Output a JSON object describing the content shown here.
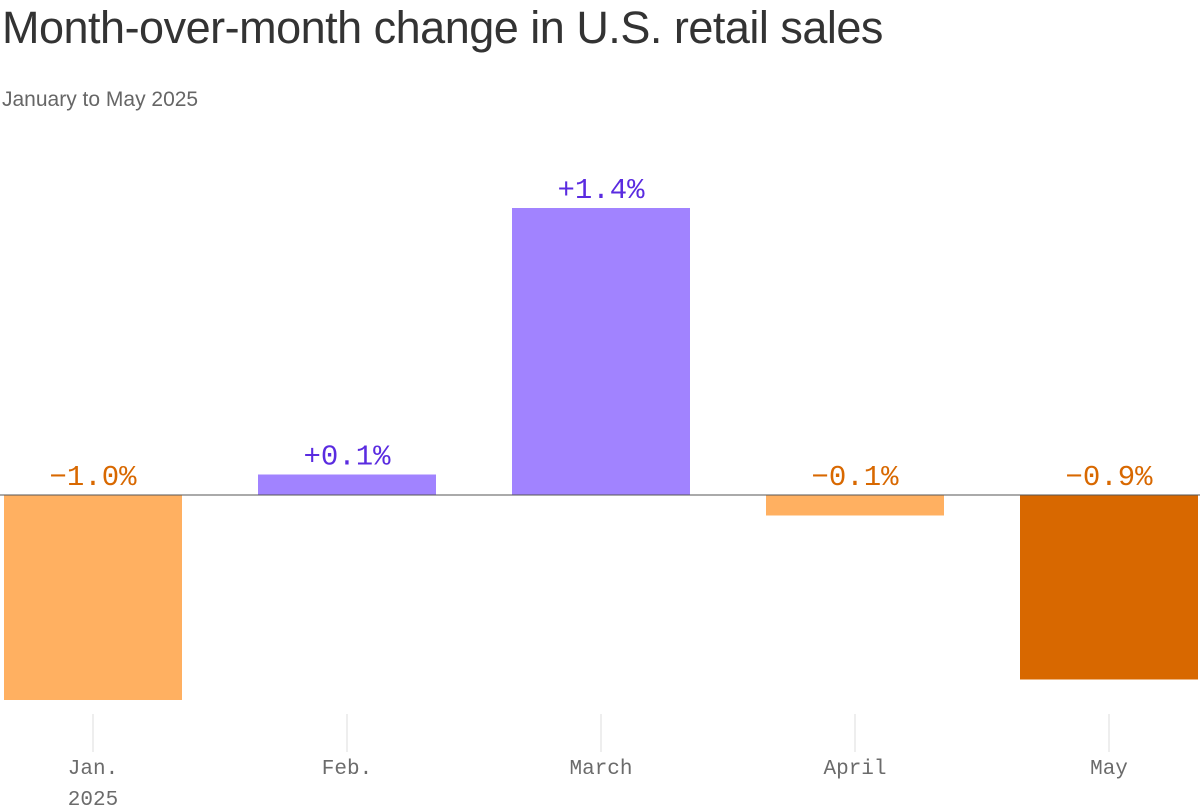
{
  "title": "Month-over-month change in U.S. retail sales",
  "subtitle": "January to May 2025",
  "colors": {
    "positive": "#a183ff",
    "positive_label": "#5a2be0",
    "negative_light": "#ffb061",
    "negative_dark": "#d86800",
    "negative_label": "#d86800",
    "axis": "#555555",
    "tick": "#dddddd"
  },
  "chart_data": {
    "type": "bar",
    "categories": [
      "Jan.",
      "Feb.",
      "March",
      "April",
      "May"
    ],
    "category_sublabels": [
      "2025",
      "",
      "",
      "",
      ""
    ],
    "values": [
      -1.0,
      0.1,
      1.4,
      -0.1,
      -0.9
    ],
    "value_labels": [
      "−1.0%",
      "+0.1%",
      "+1.4%",
      "−0.1%",
      "−0.9%"
    ],
    "bar_colors": [
      "#ffb061",
      "#a183ff",
      "#a183ff",
      "#ffb061",
      "#d86800"
    ],
    "title": "Month-over-month change in U.S. retail sales",
    "subtitle": "January to May 2025",
    "xlabel": "",
    "ylabel": "",
    "ylim": [
      -1.0,
      1.4
    ],
    "grid": false,
    "legend": "none"
  }
}
